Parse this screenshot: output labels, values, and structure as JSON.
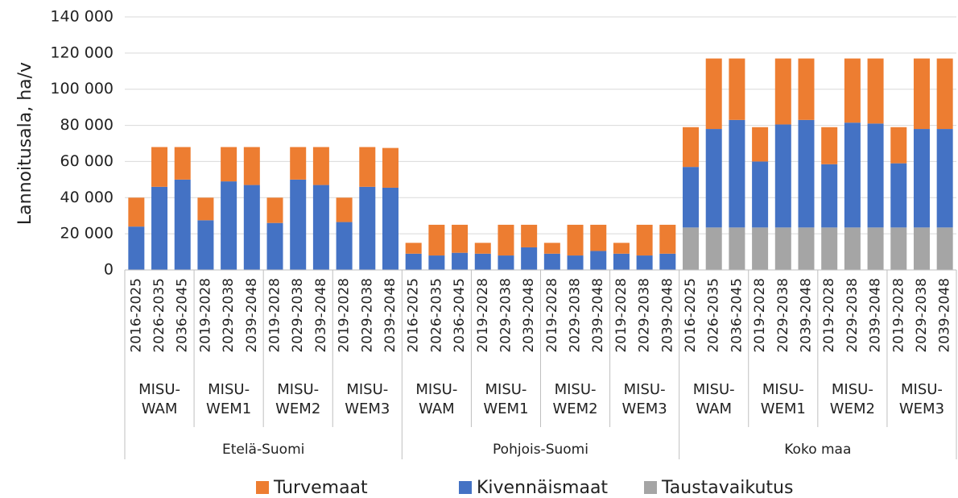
{
  "chart_data": {
    "type": "bar",
    "stacked": true,
    "y_label": "Lannoitusala, ha/v",
    "ylim": [
      0,
      140000
    ],
    "yticks": [
      0,
      {
        "value": 20000,
        "label": "20 000"
      },
      {
        "value": 40000,
        "label": "40 000"
      },
      {
        "value": 60000,
        "label": "60 000"
      },
      {
        "value": 80000,
        "label": "80 000"
      },
      {
        "value": 100000,
        "label": "100 000"
      },
      {
        "value": 120000,
        "label": "120 000"
      },
      {
        "value": 140000,
        "label": "140 000"
      }
    ],
    "grid": true,
    "legend": "bottom",
    "regions": [
      {
        "name": "Etelä-Suomi",
        "scenarios": [
          "MISU-WAM",
          "MISU-WEM1",
          "MISU-WEM2",
          "MISU-WEM3"
        ]
      },
      {
        "name": "Pohjois-Suomi",
        "scenarios": [
          "MISU-WAM",
          "MISU-WEM1",
          "MISU-WEM2",
          "MISU-WEM3"
        ]
      },
      {
        "name": "Koko maa",
        "scenarios": [
          "MISU-WAM",
          "MISU-WEM1",
          "MISU-WEM2",
          "MISU-WEM3"
        ]
      }
    ],
    "categories": [
      "2016-2025",
      "2026-2035",
      "2036-2045",
      "2019-2028",
      "2029-2038",
      "2039-2048",
      "2019-2028",
      "2029-2038",
      "2039-2048",
      "2019-2028",
      "2029-2038",
      "2039-2048",
      "2016-2025",
      "2026-2035",
      "2036-2045",
      "2019-2028",
      "2029-2038",
      "2039-2048",
      "2019-2028",
      "2029-2038",
      "2039-2048",
      "2019-2028",
      "2029-2038",
      "2039-2048",
      "2016-2025",
      "2026-2035",
      "2036-2045",
      "2019-2028",
      "2029-2038",
      "2039-2048",
      "2019-2028",
      "2029-2038",
      "2039-2048",
      "2019-2028",
      "2029-2038",
      "2039-2048"
    ],
    "series": [
      {
        "name": "Turvemaat",
        "color": "#ed7d31",
        "values": [
          16000,
          22000,
          18000,
          12500,
          19000,
          21000,
          14000,
          18000,
          21000,
          13500,
          22000,
          22000,
          6000,
          17000,
          15500,
          6000,
          17000,
          12500,
          6000,
          17000,
          14500,
          6000,
          17000,
          16000,
          22000,
          39000,
          34000,
          19000,
          36500,
          34000,
          20500,
          35500,
          36000,
          20000,
          39000,
          39000
        ]
      },
      {
        "name": "Kivennäismaat",
        "color": "#4472c4",
        "values": [
          24000,
          46000,
          50000,
          27500,
          49000,
          47000,
          26000,
          50000,
          47000,
          26500,
          46000,
          45500,
          9000,
          8000,
          9500,
          9000,
          8000,
          12500,
          9000,
          8000,
          10500,
          9000,
          8000,
          9000,
          33500,
          54500,
          59500,
          36500,
          57000,
          59500,
          35000,
          58000,
          57500,
          35500,
          54500,
          54500
        ]
      },
      {
        "name": "Taustavaikutus",
        "color": "#a5a5a5",
        "values": [
          null,
          null,
          null,
          null,
          null,
          null,
          null,
          null,
          null,
          null,
          null,
          null,
          null,
          null,
          null,
          null,
          null,
          null,
          null,
          null,
          null,
          null,
          null,
          null,
          23500,
          23500,
          23500,
          23500,
          23500,
          23500,
          23500,
          23500,
          23500,
          23500,
          23500,
          23500
        ]
      }
    ]
  }
}
